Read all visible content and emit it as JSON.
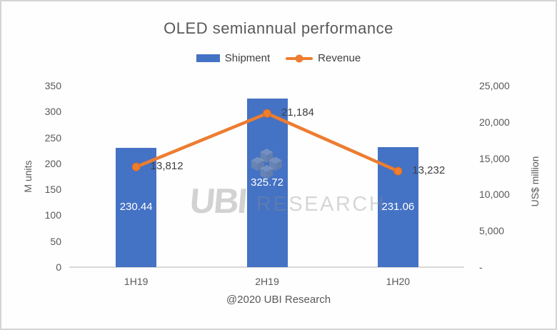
{
  "title": "OLED semiannual performance",
  "legend": {
    "items": [
      {
        "label": "Shipment"
      },
      {
        "label": "Revenue"
      }
    ]
  },
  "footer": "@2020 UBI Research",
  "watermark": {
    "ubi": "UBI",
    "research": "RESEARCH"
  },
  "colors": {
    "bar": "#4472C4",
    "line": "#ED7D31",
    "marker_stroke": "#D96C20",
    "title_text": "#595959",
    "axis_text": "#595959",
    "value_text": "#404040",
    "bar_value_text": "#FFFFFF",
    "axis_line": "#D9D9D9",
    "border": "#D4D4D4"
  },
  "chart_data": {
    "type": "bar",
    "subtype": "combo bar + line, dual axis",
    "title": "OLED semiannual performance",
    "categories": [
      "1H19",
      "2H19",
      "1H20"
    ],
    "series": [
      {
        "name": "Shipment",
        "type": "bar",
        "axis": "left",
        "color": "#4472C4",
        "values": [
          230.44,
          325.72,
          231.06
        ],
        "data_labels": [
          "230.44",
          "325.72",
          "231.06"
        ]
      },
      {
        "name": "Revenue",
        "type": "line",
        "axis": "right",
        "color": "#ED7D31",
        "values": [
          13812,
          21184,
          13232
        ],
        "data_labels": [
          "13,812",
          "21,184",
          "13,232"
        ]
      }
    ],
    "left_axis": {
      "title": "M units",
      "min": 0,
      "max": 350,
      "step": 50,
      "tick_labels": [
        "0",
        "50",
        "100",
        "150",
        "200",
        "250",
        "300",
        "350"
      ]
    },
    "right_axis": {
      "title": "US$ million",
      "min": 0,
      "max": 25000,
      "step": 5000,
      "tick_labels": [
        "-",
        "5,000",
        "10,000",
        "15,000",
        "20,000",
        "25,000"
      ]
    },
    "grid": false,
    "legend_position": "top"
  }
}
